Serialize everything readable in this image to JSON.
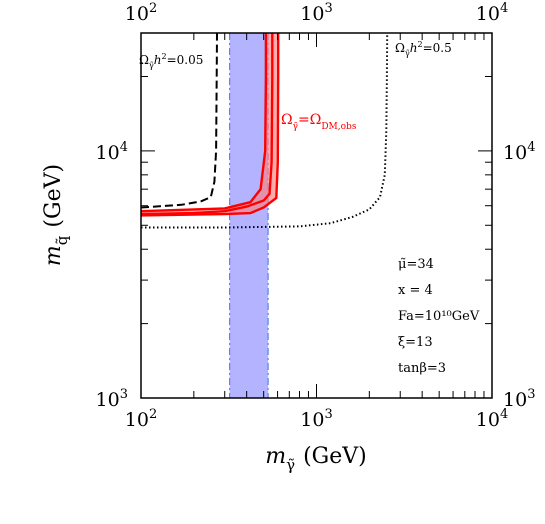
{
  "chart_data": {
    "type": "line",
    "x_scale": "log",
    "y_scale": "log",
    "xlim": [
      100,
      10000
    ],
    "ylim": [
      1000,
      30000
    ],
    "x_ticks": [
      {
        "value": 100,
        "label": "10",
        "exp": "2"
      },
      {
        "value": 1000,
        "label": "10",
        "exp": "3"
      },
      {
        "value": 10000,
        "label": "10",
        "exp": "4"
      }
    ],
    "y_ticks": [
      {
        "value": 1000,
        "label": "10",
        "exp": "3"
      },
      {
        "value": 10000,
        "label": "10",
        "exp": "4"
      }
    ],
    "xlabel": {
      "base": "m",
      "sub": "γ̃",
      "unit": "(GeV)"
    },
    "ylabel": {
      "base": "m",
      "sub": "q̃",
      "unit": "(GeV)"
    },
    "series": [
      {
        "style": "dashed",
        "color": "#000000",
        "points": [
          [
            100,
            5900
          ],
          [
            170,
            6050
          ],
          [
            220,
            6250
          ],
          [
            250,
            6500
          ],
          [
            262,
            7500
          ],
          [
            268,
            10000
          ],
          [
            270,
            20000
          ],
          [
            271,
            30000
          ]
        ]
      },
      {
        "style": "dotted",
        "color": "#000000",
        "points": [
          [
            100,
            4900
          ],
          [
            300,
            4900
          ],
          [
            800,
            4950
          ],
          [
            1200,
            5100
          ],
          [
            1600,
            5400
          ],
          [
            2000,
            5800
          ],
          [
            2300,
            6500
          ],
          [
            2450,
            8000
          ],
          [
            2500,
            12000
          ],
          [
            2520,
            20000
          ],
          [
            2530,
            30000
          ]
        ]
      },
      {
        "style": "solid",
        "color": "#ff0000",
        "points": [
          [
            100,
            5550
          ],
          [
            200,
            5600
          ],
          [
            300,
            5700
          ],
          [
            400,
            5950
          ],
          [
            500,
            6300
          ],
          [
            540,
            6700
          ],
          [
            555,
            9000
          ],
          [
            560,
            20000
          ],
          [
            560,
            30000
          ]
        ]
      },
      {
        "style": "solid",
        "color": "#ff0000",
        "points": [
          [
            100,
            5700
          ],
          [
            300,
            5850
          ],
          [
            420,
            6200
          ],
          [
            480,
            7000
          ],
          [
            510,
            10000
          ],
          [
            515,
            20000
          ],
          [
            515,
            30000
          ]
        ]
      },
      {
        "style": "solid",
        "color": "#ff0000",
        "points": [
          [
            100,
            5480
          ],
          [
            300,
            5550
          ],
          [
            420,
            5600
          ],
          [
            500,
            5900
          ],
          [
            590,
            6450
          ],
          [
            602,
            9000
          ],
          [
            605,
            20000
          ],
          [
            605,
            30000
          ]
        ]
      }
    ],
    "filled_band": {
      "color": "#ff8080",
      "boundary_upper": [
        [
          100,
          5700
        ],
        [
          300,
          5850
        ],
        [
          420,
          6200
        ],
        [
          480,
          7000
        ],
        [
          510,
          10000
        ],
        [
          515,
          20000
        ],
        [
          515,
          30000
        ]
      ],
      "boundary_lower": [
        [
          100,
          5480
        ],
        [
          300,
          5550
        ],
        [
          420,
          5600
        ],
        [
          500,
          5900
        ],
        [
          590,
          6450
        ],
        [
          602,
          9000
        ],
        [
          605,
          20000
        ],
        [
          605,
          30000
        ]
      ]
    },
    "vertical_band": {
      "x_range": [
        320,
        530
      ],
      "color": "#a0a0ff",
      "edge_style": "dashdot",
      "edge_color": "#4a6fe0"
    },
    "annotations": [
      {
        "text_parts": [
          "Ω",
          "γ̃",
          "h",
          "2",
          "=0.05"
        ]
      },
      {
        "text_parts": [
          "Ω",
          "γ̃",
          "h",
          "2",
          "=0.5"
        ]
      },
      {
        "text_parts": [
          "Ω",
          "γ̃",
          "=Ω",
          "DM,obs"
        ]
      }
    ],
    "parameters": [
      "μ̃=34",
      "x = 4",
      "Fa=10¹⁰GeV",
      "ξ=13",
      "tanβ=3"
    ]
  }
}
